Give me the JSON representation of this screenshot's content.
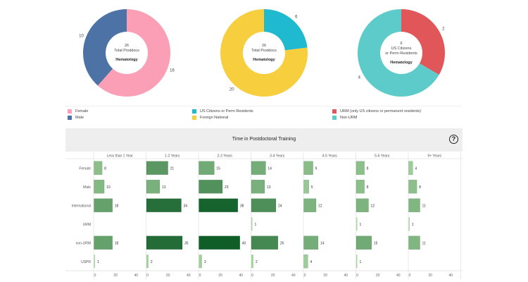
{
  "donuts": [
    {
      "center_value": "26",
      "center_lines": [
        "Total Postdocs"
      ],
      "subtitle": "Hematology",
      "slices": [
        {
          "label": "Female",
          "value": 16,
          "color": "#fa9fb5"
        },
        {
          "label": "Male",
          "value": 10,
          "color": "#4c72a6"
        }
      ]
    },
    {
      "center_value": "26",
      "center_lines": [
        "Total Postdocs"
      ],
      "subtitle": "Hematology",
      "slices": [
        {
          "label": "US Citizens or Perm Residents",
          "value": 6,
          "color": "#1fbad0"
        },
        {
          "label": "Foreign National",
          "value": 20,
          "color": "#f7ce3e"
        }
      ]
    },
    {
      "center_value": "6",
      "center_lines": [
        "US Citizens",
        "or Perm Residents"
      ],
      "subtitle": "Hematology",
      "slices": [
        {
          "label": "URM (only US citizens or permanent residents)",
          "value": 2,
          "color": "#e15759"
        },
        {
          "label": "Non-URM",
          "value": 4,
          "color": "#5ccbc9"
        }
      ]
    }
  ],
  "legends": [
    [
      {
        "label": "Female",
        "color": "#fa9fb5"
      },
      {
        "label": "Male",
        "color": "#4c72a6"
      }
    ],
    [
      {
        "label": "US Citizens or Perm Residents",
        "color": "#1fbad0"
      },
      {
        "label": "Foreign National",
        "color": "#f7ce3e"
      }
    ],
    [
      {
        "label": "URM (only US citizens or permanent residents)",
        "color": "#e15759"
      },
      {
        "label": "Non-URM",
        "color": "#5ccbc9"
      }
    ]
  ],
  "panel": {
    "title": "Time in Postdoctoral Training",
    "help_label": "?"
  },
  "chart_data": {
    "type": "bar",
    "title": "Time in Postdoctoral Training",
    "orientation": "horizontal",
    "columns": [
      "Less than 1 Year",
      "1-2 Years",
      "2-3 Years",
      "3-4 Years",
      "4-5 Years",
      "5-6 Years",
      "6+ Years"
    ],
    "rows": [
      "Female",
      "Male",
      "International",
      "URM",
      "non-URM",
      "USPR"
    ],
    "values": [
      [
        8,
        21,
        15,
        14,
        9,
        8,
        4
      ],
      [
        10,
        13,
        23,
        13,
        5,
        8,
        8
      ],
      [
        18,
        34,
        38,
        24,
        12,
        12,
        11
      ],
      [
        null,
        null,
        null,
        1,
        null,
        1,
        1
      ],
      [
        18,
        35,
        40,
        26,
        14,
        15,
        11
      ],
      [
        1,
        2,
        3,
        2,
        4,
        1,
        null
      ]
    ],
    "xlim": [
      0,
      45
    ],
    "xticks": [
      "0",
      "20",
      "40"
    ],
    "color_scale": [
      "#a8d5a0",
      "#0f5d27"
    ]
  }
}
